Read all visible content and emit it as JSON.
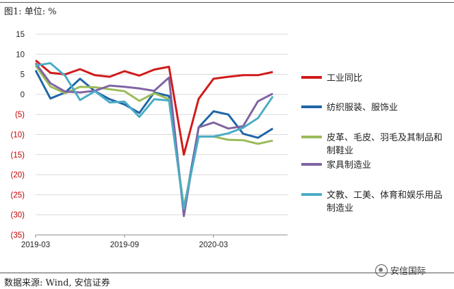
{
  "figure_label": "图1:   单位: %",
  "source_text": "数据来源: Wind, 安信证券",
  "watermark": "安信国际",
  "chart_data": {
    "type": "line",
    "title": "",
    "xlabel": "",
    "ylabel": "",
    "ylim": [
      -35,
      15
    ],
    "yticks": [
      15,
      10,
      5,
      0,
      -5,
      -10,
      -15,
      -20,
      -25,
      -30,
      -35
    ],
    "ytick_labels": [
      "15",
      "10",
      "5",
      "0",
      "(5)",
      "(10)",
      "(15)",
      "(20)",
      "(25)",
      "(30)",
      "(35)"
    ],
    "xtick_labels": [
      {
        "label": "2019-03",
        "index": 0
      },
      {
        "label": "2019-09",
        "index": 6
      },
      {
        "label": "2020-03",
        "index": 12
      }
    ],
    "x": [
      "2019-03",
      "2019-04",
      "2019-05",
      "2019-06",
      "2019-07",
      "2019-08",
      "2019-09",
      "2019-10",
      "2019-11",
      "2019-12",
      "2020-01",
      "2020-02",
      "2020-03",
      "2020-04",
      "2020-05",
      "2020-06",
      "2020-07",
      "2020-08"
    ],
    "legend_position": "right",
    "grid": true,
    "series": [
      {
        "name": "工业同比",
        "color": "#d11a1a",
        "values": [
          8.5,
          5.4,
          5.0,
          6.3,
          4.8,
          4.4,
          5.8,
          4.7,
          6.2,
          6.9,
          -15.0,
          -1.1,
          3.9,
          4.4,
          4.8,
          4.8,
          5.6,
          null
        ]
      },
      {
        "name": "纺织服装、服饰业",
        "color": "#1f66a7",
        "values": [
          6.0,
          -1.0,
          0.5,
          3.9,
          0.8,
          -1.2,
          -2.5,
          -4.6,
          0.5,
          -0.4,
          -29.0,
          -8.2,
          -4.2,
          -5.0,
          -9.8,
          -10.8,
          -8.5,
          null
        ]
      },
      {
        "name": "皮革、毛皮、羽毛及其制品和制鞋业",
        "color": "#9bbb59",
        "values": [
          7.2,
          2.0,
          0.3,
          1.9,
          1.8,
          1.3,
          0.8,
          -1.6,
          0.3,
          -1.2,
          -28.0,
          -10.5,
          -10.5,
          -11.3,
          -11.4,
          -12.3,
          -11.5,
          null
        ]
      },
      {
        "name": "家具制造业",
        "color": "#8064a2",
        "values": [
          7.8,
          2.8,
          0.7,
          0.5,
          0.9,
          2.2,
          1.9,
          1.5,
          0.9,
          4.2,
          -30.3,
          -8.2,
          -7.0,
          -8.5,
          -7.9,
          -1.7,
          0.2,
          null
        ]
      },
      {
        "name": "文教、工美、体育和娱乐用品制造业",
        "color": "#4bacc6",
        "values": [
          7.2,
          7.8,
          4.6,
          -1.4,
          0.8,
          -2.0,
          -1.8,
          -5.6,
          -1.2,
          -1.5,
          -28.5,
          -10.5,
          -10.5,
          -9.7,
          -8.3,
          -5.9,
          -0.5,
          null
        ]
      }
    ]
  }
}
